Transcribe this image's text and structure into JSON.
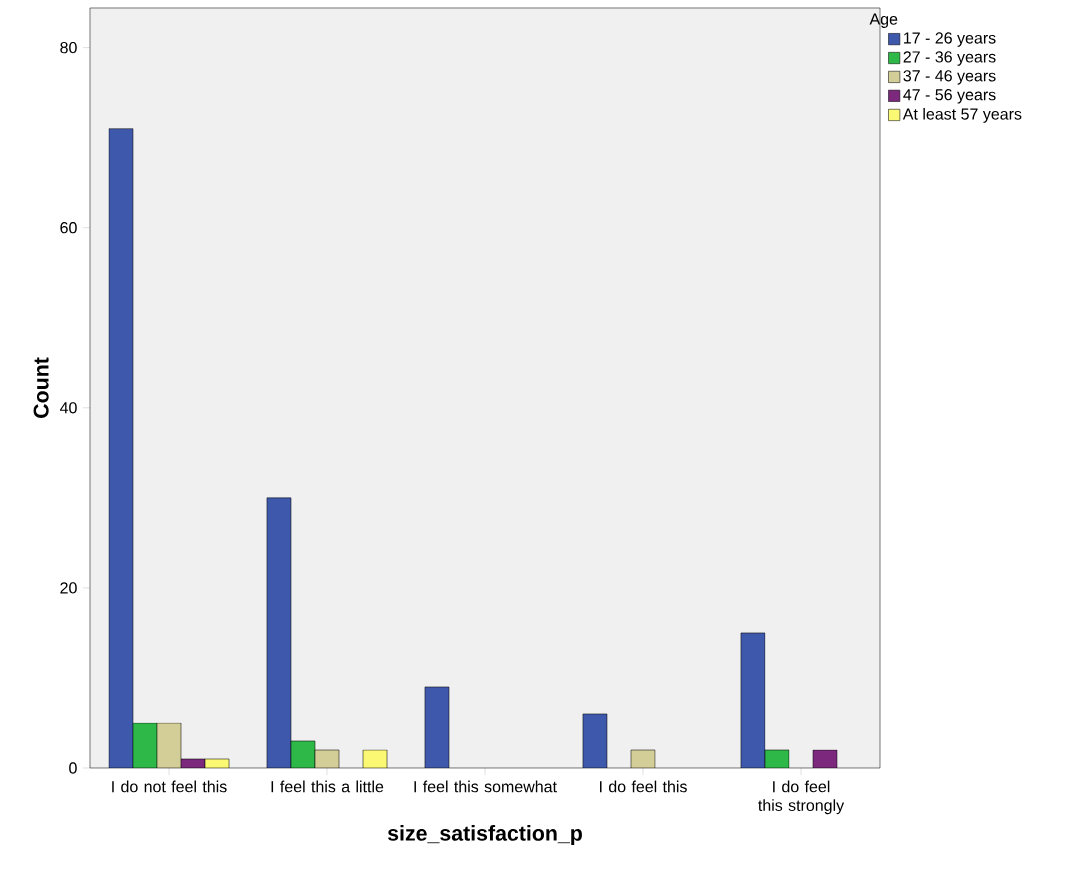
{
  "chart_data": {
    "type": "bar",
    "xlabel": "size_satisfaction_p",
    "ylabel": "Count",
    "legend_title": "Age",
    "categories": [
      "I do not feel this",
      "I feel this a little",
      "I feel this somewhat",
      "I do feel this",
      "I do feel this strongly"
    ],
    "series": [
      {
        "name": "17 - 26 years",
        "color": "#3e58ac",
        "values": [
          71,
          30,
          9,
          6,
          15
        ]
      },
      {
        "name": "27 - 36 years",
        "color": "#2eb848",
        "values": [
          5,
          3,
          null,
          null,
          2
        ]
      },
      {
        "name": "37 - 46 years",
        "color": "#d3ce97",
        "values": [
          5,
          2,
          null,
          2,
          null
        ]
      },
      {
        "name": "47 - 56 years",
        "color": "#7c287d",
        "values": [
          1,
          null,
          null,
          null,
          2
        ]
      },
      {
        "name": "At least 57 years",
        "color": "#fbf873",
        "values": [
          1,
          2,
          null,
          null,
          null
        ]
      }
    ],
    "ylim": [
      0,
      84.4
    ],
    "yticks": [
      0,
      20,
      40,
      60,
      80
    ],
    "legend": "right"
  }
}
